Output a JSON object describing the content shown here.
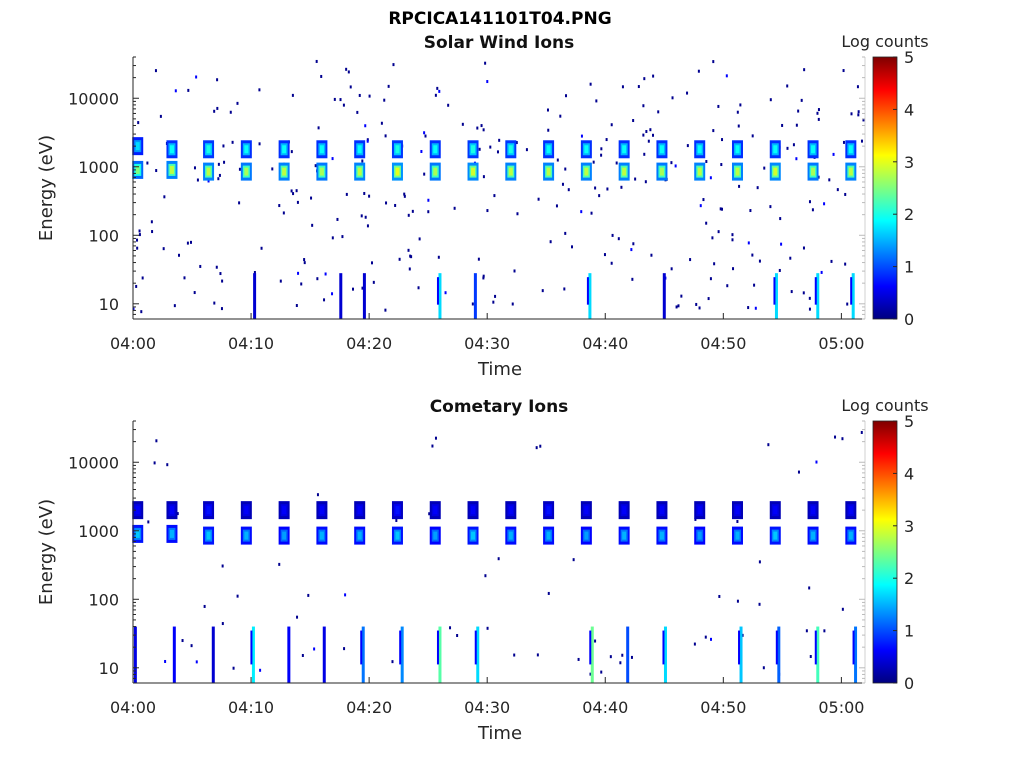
{
  "page_title": "RPCICA141101T04.PNG",
  "colors": {
    "colormap": [
      "#00007f",
      "#0000ff",
      "#007fff",
      "#00ffff",
      "#7fff7f",
      "#ffff00",
      "#ff7f00",
      "#ff0000",
      "#7f0000"
    ],
    "axis": "#262626",
    "background": "#ffffff"
  },
  "chart_data": [
    {
      "type": "heatmap",
      "title": "Solar Wind Ions",
      "xlabel": "Time",
      "ylabel": "Energy (eV)",
      "y_scale": "log",
      "ylim": [
        6,
        40000
      ],
      "xlim": [
        "04:00",
        "05:02"
      ],
      "x_ticks": [
        "04:00",
        "04:10",
        "04:20",
        "04:30",
        "04:40",
        "04:50",
        "05:00"
      ],
      "y_ticks": [
        10,
        100,
        1000,
        10000
      ],
      "y_tick_labels": [
        "10",
        "100",
        "1000",
        "10000"
      ],
      "colorbar": {
        "label": "Log counts",
        "range": [
          0,
          5
        ],
        "ticks": [
          "0",
          "1",
          "2",
          "3",
          "4",
          "5"
        ]
      },
      "series": [
        {
          "values": [
            {
              "t_min": 0.4,
              "energy_eV": 2000,
              "log_counts": 1.7
            },
            {
              "t_min": 0.4,
              "energy_eV": 900,
              "log_counts": 2.5
            },
            {
              "t_min": 3.3,
              "energy_eV": 1800,
              "log_counts": 1.9
            },
            {
              "t_min": 3.3,
              "energy_eV": 900,
              "log_counts": 2.8
            },
            {
              "t_min": 6.4,
              "energy_eV": 1800,
              "log_counts": 2.0
            },
            {
              "t_min": 6.4,
              "energy_eV": 850,
              "log_counts": 2.8
            },
            {
              "t_min": 9.6,
              "energy_eV": 1800,
              "log_counts": 1.9
            },
            {
              "t_min": 9.6,
              "energy_eV": 850,
              "log_counts": 2.7
            },
            {
              "t_min": 12.8,
              "energy_eV": 1800,
              "log_counts": 1.9
            },
            {
              "t_min": 12.8,
              "energy_eV": 850,
              "log_counts": 2.8
            },
            {
              "t_min": 16.0,
              "energy_eV": 1800,
              "log_counts": 1.9
            },
            {
              "t_min": 16.0,
              "energy_eV": 850,
              "log_counts": 2.7
            },
            {
              "t_min": 19.2,
              "energy_eV": 1800,
              "log_counts": 1.9
            },
            {
              "t_min": 19.2,
              "energy_eV": 850,
              "log_counts": 2.8
            },
            {
              "t_min": 22.4,
              "energy_eV": 1800,
              "log_counts": 2.0
            },
            {
              "t_min": 22.4,
              "energy_eV": 850,
              "log_counts": 3.0
            },
            {
              "t_min": 25.6,
              "energy_eV": 1800,
              "log_counts": 1.9
            },
            {
              "t_min": 25.6,
              "energy_eV": 850,
              "log_counts": 2.7
            },
            {
              "t_min": 28.8,
              "energy_eV": 1800,
              "log_counts": 2.0
            },
            {
              "t_min": 28.8,
              "energy_eV": 850,
              "log_counts": 2.9
            },
            {
              "t_min": 32.0,
              "energy_eV": 1800,
              "log_counts": 2.0
            },
            {
              "t_min": 32.0,
              "energy_eV": 850,
              "log_counts": 2.8
            },
            {
              "t_min": 35.2,
              "energy_eV": 1800,
              "log_counts": 1.9
            },
            {
              "t_min": 35.2,
              "energy_eV": 850,
              "log_counts": 2.8
            },
            {
              "t_min": 38.4,
              "energy_eV": 1800,
              "log_counts": 1.9
            },
            {
              "t_min": 38.4,
              "energy_eV": 850,
              "log_counts": 2.8
            },
            {
              "t_min": 41.6,
              "energy_eV": 1800,
              "log_counts": 1.9
            },
            {
              "t_min": 41.6,
              "energy_eV": 850,
              "log_counts": 2.8
            },
            {
              "t_min": 44.8,
              "energy_eV": 1800,
              "log_counts": 1.9
            },
            {
              "t_min": 44.8,
              "energy_eV": 850,
              "log_counts": 2.7
            },
            {
              "t_min": 48.0,
              "energy_eV": 1800,
              "log_counts": 1.9
            },
            {
              "t_min": 48.0,
              "energy_eV": 850,
              "log_counts": 2.8
            },
            {
              "t_min": 51.2,
              "energy_eV": 1800,
              "log_counts": 1.9
            },
            {
              "t_min": 51.2,
              "energy_eV": 850,
              "log_counts": 2.8
            },
            {
              "t_min": 54.4,
              "energy_eV": 1800,
              "log_counts": 1.9
            },
            {
              "t_min": 54.4,
              "energy_eV": 850,
              "log_counts": 2.9
            },
            {
              "t_min": 57.6,
              "energy_eV": 1800,
              "log_counts": 1.9
            },
            {
              "t_min": 57.6,
              "energy_eV": 850,
              "log_counts": 2.7
            },
            {
              "t_min": 60.8,
              "energy_eV": 1800,
              "log_counts": 1.9
            },
            {
              "t_min": 60.8,
              "energy_eV": 850,
              "log_counts": 2.8
            }
          ]
        }
      ],
      "low_energy_streaks": [
        {
          "t_min": 10.3,
          "log_counts": 0.4
        },
        {
          "t_min": 17.6,
          "log_counts": 0.4
        },
        {
          "t_min": 19.6,
          "log_counts": 0.4
        },
        {
          "t_min": 26.0,
          "log_counts": 1.7
        },
        {
          "t_min": 29.0,
          "log_counts": 0.9
        },
        {
          "t_min": 38.7,
          "log_counts": 1.7
        },
        {
          "t_min": 45.0,
          "log_counts": 0.4
        },
        {
          "t_min": 54.5,
          "log_counts": 1.7
        },
        {
          "t_min": 58.0,
          "log_counts": 1.7
        },
        {
          "t_min": 61.0,
          "log_counts": 1.7
        }
      ]
    },
    {
      "type": "heatmap",
      "title": "Cometary Ions",
      "xlabel": "Time",
      "ylabel": "Energy (eV)",
      "y_scale": "log",
      "ylim": [
        6,
        40000
      ],
      "xlim": [
        "04:00",
        "05:02"
      ],
      "x_ticks": [
        "04:00",
        "04:10",
        "04:20",
        "04:30",
        "04:40",
        "04:50",
        "05:00"
      ],
      "y_ticks": [
        10,
        100,
        1000,
        10000
      ],
      "y_tick_labels": [
        "10",
        "100",
        "1000",
        "10000"
      ],
      "colorbar": {
        "label": "Log counts",
        "range": [
          0,
          5
        ],
        "ticks": [
          "0",
          "1",
          "2",
          "3",
          "4",
          "5"
        ]
      },
      "series": [
        {
          "values": [
            {
              "t_min": 0.4,
              "energy_eV": 2000,
              "log_counts": 0.6
            },
            {
              "t_min": 0.4,
              "energy_eV": 900,
              "log_counts": 1.6
            },
            {
              "t_min": 3.3,
              "energy_eV": 2000,
              "log_counts": 0.6
            },
            {
              "t_min": 3.3,
              "energy_eV": 900,
              "log_counts": 1.5
            },
            {
              "t_min": 6.4,
              "energy_eV": 2000,
              "log_counts": 0.7
            },
            {
              "t_min": 6.4,
              "energy_eV": 850,
              "log_counts": 1.6
            },
            {
              "t_min": 9.6,
              "energy_eV": 2000,
              "log_counts": 0.6
            },
            {
              "t_min": 9.6,
              "energy_eV": 850,
              "log_counts": 1.5
            },
            {
              "t_min": 12.8,
              "energy_eV": 2000,
              "log_counts": 0.6
            },
            {
              "t_min": 12.8,
              "energy_eV": 850,
              "log_counts": 1.4
            },
            {
              "t_min": 16.0,
              "energy_eV": 2000,
              "log_counts": 0.6
            },
            {
              "t_min": 16.0,
              "energy_eV": 850,
              "log_counts": 1.5
            },
            {
              "t_min": 19.2,
              "energy_eV": 2000,
              "log_counts": 0.6
            },
            {
              "t_min": 19.2,
              "energy_eV": 850,
              "log_counts": 1.5
            },
            {
              "t_min": 22.4,
              "energy_eV": 2000,
              "log_counts": 0.7
            },
            {
              "t_min": 22.4,
              "energy_eV": 850,
              "log_counts": 1.6
            },
            {
              "t_min": 25.6,
              "energy_eV": 2000,
              "log_counts": 0.6
            },
            {
              "t_min": 25.6,
              "energy_eV": 850,
              "log_counts": 1.4
            },
            {
              "t_min": 28.8,
              "energy_eV": 2000,
              "log_counts": 0.6
            },
            {
              "t_min": 28.8,
              "energy_eV": 850,
              "log_counts": 1.6
            },
            {
              "t_min": 32.0,
              "energy_eV": 2000,
              "log_counts": 0.6
            },
            {
              "t_min": 32.0,
              "energy_eV": 850,
              "log_counts": 1.5
            },
            {
              "t_min": 35.2,
              "energy_eV": 2000,
              "log_counts": 0.7
            },
            {
              "t_min": 35.2,
              "energy_eV": 850,
              "log_counts": 1.5
            },
            {
              "t_min": 38.4,
              "energy_eV": 2000,
              "log_counts": 0.6
            },
            {
              "t_min": 38.4,
              "energy_eV": 850,
              "log_counts": 1.4
            },
            {
              "t_min": 41.6,
              "energy_eV": 2000,
              "log_counts": 0.6
            },
            {
              "t_min": 41.6,
              "energy_eV": 850,
              "log_counts": 1.5
            },
            {
              "t_min": 44.8,
              "energy_eV": 2000,
              "log_counts": 0.6
            },
            {
              "t_min": 44.8,
              "energy_eV": 850,
              "log_counts": 1.5
            },
            {
              "t_min": 48.0,
              "energy_eV": 2000,
              "log_counts": 0.6
            },
            {
              "t_min": 48.0,
              "energy_eV": 850,
              "log_counts": 1.4
            },
            {
              "t_min": 51.2,
              "energy_eV": 2000,
              "log_counts": 0.6
            },
            {
              "t_min": 51.2,
              "energy_eV": 850,
              "log_counts": 1.5
            },
            {
              "t_min": 54.4,
              "energy_eV": 2000,
              "log_counts": 0.6
            },
            {
              "t_min": 54.4,
              "energy_eV": 850,
              "log_counts": 1.6
            },
            {
              "t_min": 57.6,
              "energy_eV": 2000,
              "log_counts": 0.6
            },
            {
              "t_min": 57.6,
              "energy_eV": 850,
              "log_counts": 1.5
            },
            {
              "t_min": 60.8,
              "energy_eV": 2000,
              "log_counts": 0.6
            },
            {
              "t_min": 60.8,
              "energy_eV": 850,
              "log_counts": 1.5
            }
          ]
        }
      ],
      "low_energy_streaks": [
        {
          "t_min": 0.2,
          "log_counts": 0.5
        },
        {
          "t_min": 3.5,
          "log_counts": 0.6
        },
        {
          "t_min": 6.8,
          "log_counts": 0.4
        },
        {
          "t_min": 10.2,
          "log_counts": 1.8
        },
        {
          "t_min": 13.2,
          "log_counts": 0.6
        },
        {
          "t_min": 16.2,
          "log_counts": 0.5
        },
        {
          "t_min": 19.5,
          "log_counts": 1.2
        },
        {
          "t_min": 22.8,
          "log_counts": 1.3
        },
        {
          "t_min": 26.0,
          "log_counts": 2.3
        },
        {
          "t_min": 29.2,
          "log_counts": 1.7
        },
        {
          "t_min": 38.9,
          "log_counts": 2.4
        },
        {
          "t_min": 41.9,
          "log_counts": 1.0
        },
        {
          "t_min": 45.1,
          "log_counts": 1.7
        },
        {
          "t_min": 51.5,
          "log_counts": 1.6
        },
        {
          "t_min": 54.7,
          "log_counts": 1.1
        },
        {
          "t_min": 58.0,
          "log_counts": 2.2
        },
        {
          "t_min": 61.2,
          "log_counts": 1.2
        }
      ]
    }
  ]
}
